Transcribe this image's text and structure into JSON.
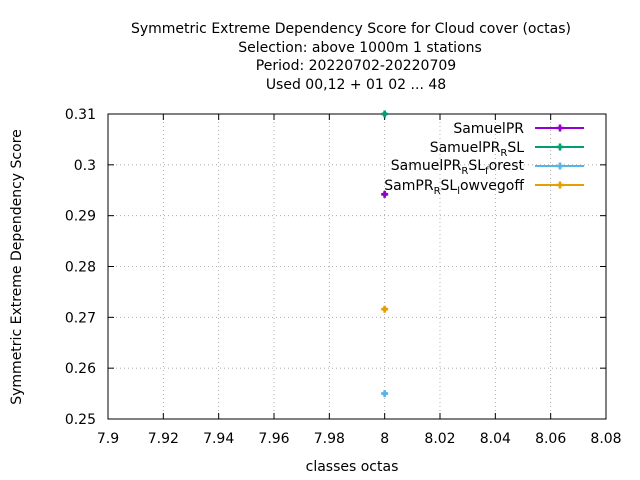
{
  "chart_data": {
    "type": "scatter",
    "title_lines": [
      "Symmetric Extreme Dependency Score  for Cloud cover (octas)",
      "Selection: above 1000m      1 stations",
      "Period: 20220702-20220709",
      "Used  00,12  + 01 02 ... 48"
    ],
    "xlabel": "classes octas",
    "ylabel": "Symmetric Extreme Dependency Score",
    "xlim": [
      7.9,
      8.08
    ],
    "ylim": [
      0.25,
      0.31
    ],
    "x_ticks": [
      "7.9",
      "7.92",
      "7.94",
      "7.96",
      "7.98",
      "8",
      "8.02",
      "8.04",
      "8.06",
      "8.08"
    ],
    "y_ticks": [
      "0.25",
      "0.26",
      "0.27",
      "0.28",
      "0.29",
      "0.3",
      "0.31"
    ],
    "grid": true,
    "legend_position": "top-right",
    "series": [
      {
        "name": "SamuelPR",
        "color": "#9400d3",
        "points": [
          [
            8,
            0.2942
          ]
        ]
      },
      {
        "name": "SamuelPR_RSL",
        "color": "#009e73",
        "points": [
          [
            8,
            0.31
          ]
        ]
      },
      {
        "name": "SamuelPR_RSL_forest",
        "color": "#56b4e9",
        "points": [
          [
            8,
            0.255
          ]
        ]
      },
      {
        "name": "SamPR_RSL_lowvegoff",
        "color": "#e69f00",
        "points": [
          [
            8,
            0.2716
          ]
        ]
      }
    ]
  }
}
